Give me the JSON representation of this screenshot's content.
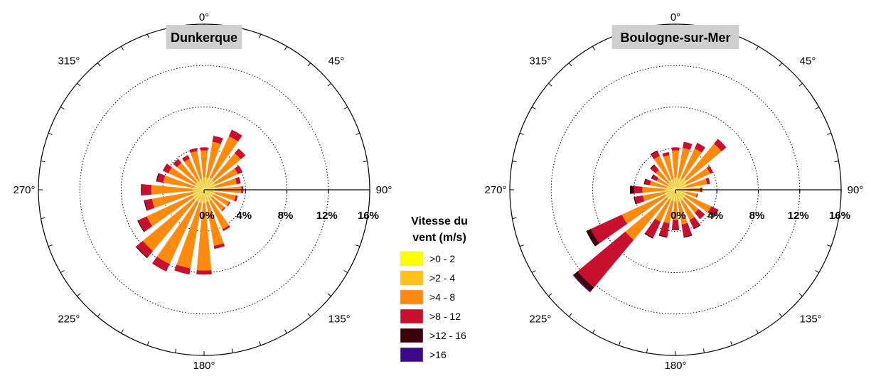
{
  "chart_data": {
    "type": "wind-rose",
    "direction_labels": [
      {
        "angle": 0,
        "text": "0°"
      },
      {
        "angle": 45,
        "text": "45°"
      },
      {
        "angle": 90,
        "text": "90°"
      },
      {
        "angle": 135,
        "text": "135°"
      },
      {
        "angle": 180,
        "text": "180°"
      },
      {
        "angle": 225,
        "text": "225°"
      },
      {
        "angle": 270,
        "text": "270°"
      },
      {
        "angle": 315,
        "text": "315°"
      }
    ],
    "radial_max": 16,
    "radial_ticks": [
      {
        "value": 0,
        "label": "0%"
      },
      {
        "value": 4,
        "label": "4%"
      },
      {
        "value": 8,
        "label": "8%"
      },
      {
        "value": 12,
        "label": "12%"
      },
      {
        "value": 16,
        "label": "16%"
      }
    ],
    "legend": {
      "title_line1": "Vitesse du",
      "title_line2": "vent (m/s)",
      "placement": "center-bottom",
      "classes": [
        {
          "label": ">0 - 2",
          "color": "#ffff00"
        },
        {
          "label": ">2 - 4",
          "color": "#ffc21a"
        },
        {
          "label": ">4 - 8",
          "color": "#ff8a0d"
        },
        {
          "label": ">8 - 12",
          "color": "#c8102e"
        },
        {
          "label": ">12 - 16",
          "color": "#3d0008"
        },
        {
          "label": ">16",
          "color": "#3b0a8a"
        }
      ]
    },
    "stations": [
      {
        "title": "Dunkerque",
        "sectors": [
          {
            "dir": 0,
            "values": [
              0.2,
              1.0,
              2.6,
              0.3,
              0,
              0
            ]
          },
          {
            "dir": 15,
            "values": [
              0.2,
              1.0,
              3.5,
              0.6,
              0,
              0
            ]
          },
          {
            "dir": 30,
            "values": [
              0.2,
              1.1,
              4.4,
              0.7,
              0,
              0
            ]
          },
          {
            "dir": 45,
            "values": [
              0.2,
              1.0,
              3.4,
              0.6,
              0,
              0
            ]
          },
          {
            "dir": 60,
            "values": [
              0.2,
              1.0,
              2.4,
              0.5,
              0,
              0
            ]
          },
          {
            "dir": 75,
            "values": [
              0.2,
              0.9,
              2.1,
              0.4,
              0,
              0
            ]
          },
          {
            "dir": 90,
            "values": [
              0.2,
              0.8,
              2.6,
              0.2,
              0,
              0
            ]
          },
          {
            "dir": 105,
            "values": [
              0.2,
              0.9,
              2.0,
              0.2,
              0,
              0
            ]
          },
          {
            "dir": 120,
            "values": [
              0.2,
              0.8,
              1.7,
              0.1,
              0,
              0
            ]
          },
          {
            "dir": 135,
            "values": [
              0.2,
              0.8,
              1.6,
              0.1,
              0,
              0
            ]
          },
          {
            "dir": 150,
            "values": [
              0.2,
              1.0,
              3.0,
              0.2,
              0,
              0
            ]
          },
          {
            "dir": 165,
            "values": [
              0.2,
              1.0,
              4.3,
              0.3,
              0,
              0
            ]
          },
          {
            "dir": 180,
            "values": [
              0.2,
              1.1,
              6.5,
              0.4,
              0,
              0
            ]
          },
          {
            "dir": 195,
            "values": [
              0.2,
              1.1,
              6.4,
              0.6,
              0,
              0
            ]
          },
          {
            "dir": 210,
            "values": [
              0.2,
              1.1,
              6.6,
              0.8,
              0,
              0
            ]
          },
          {
            "dir": 225,
            "values": [
              0.2,
              1.1,
              6.4,
              0.8,
              0.1,
              0
            ]
          },
          {
            "dir": 240,
            "values": [
              0.2,
              1.0,
              4.9,
              0.9,
              0.1,
              0
            ]
          },
          {
            "dir": 255,
            "values": [
              0.2,
              0.9,
              4.0,
              0.7,
              0.1,
              0
            ]
          },
          {
            "dir": 270,
            "values": [
              0.2,
              0.9,
              4.0,
              0.9,
              0.1,
              0
            ]
          },
          {
            "dir": 285,
            "values": [
              0.2,
              0.8,
              3.0,
              0.6,
              0.1,
              0
            ]
          },
          {
            "dir": 300,
            "values": [
              0.2,
              0.8,
              2.8,
              0.6,
              0,
              0
            ]
          },
          {
            "dir": 315,
            "values": [
              0.2,
              0.8,
              2.4,
              0.5,
              0,
              0
            ]
          },
          {
            "dir": 330,
            "values": [
              0.2,
              0.8,
              2.3,
              0.4,
              0,
              0
            ]
          },
          {
            "dir": 345,
            "values": [
              0.2,
              0.9,
              2.7,
              0.3,
              0,
              0
            ]
          }
        ]
      },
      {
        "title": "Boulogne-sur-Mer",
        "sectors": [
          {
            "dir": 0,
            "values": [
              0.2,
              1.0,
              2.6,
              0.3,
              0,
              0
            ]
          },
          {
            "dir": 15,
            "values": [
              0.2,
              1.0,
              2.9,
              0.6,
              0,
              0
            ]
          },
          {
            "dir": 30,
            "values": [
              0.2,
              1.0,
              3.2,
              0.6,
              0,
              0
            ]
          },
          {
            "dir": 45,
            "values": [
              0.2,
              1.2,
              4.4,
              0.6,
              0,
              0
            ]
          },
          {
            "dir": 60,
            "values": [
              0.2,
              1.0,
              2.5,
              0.3,
              0,
              0
            ]
          },
          {
            "dir": 75,
            "values": [
              0.2,
              0.9,
              2.0,
              0.3,
              0,
              0
            ]
          },
          {
            "dir": 90,
            "values": [
              0.2,
              0.8,
              1.4,
              0.2,
              0,
              0
            ]
          },
          {
            "dir": 105,
            "values": [
              0.2,
              0.8,
              1.1,
              0.1,
              0,
              0
            ]
          },
          {
            "dir": 120,
            "values": [
              0.2,
              0.9,
              2.7,
              0.8,
              0,
              0
            ]
          },
          {
            "dir": 135,
            "values": [
              0.2,
              0.9,
              1.8,
              0.8,
              0,
              0
            ]
          },
          {
            "dir": 150,
            "values": [
              0.2,
              1.0,
              2.0,
              0.9,
              0.1,
              0
            ]
          },
          {
            "dir": 165,
            "values": [
              0.2,
              1.0,
              2.2,
              1.2,
              0.1,
              0
            ]
          },
          {
            "dir": 180,
            "values": [
              0.2,
              0.9,
              1.8,
              0.9,
              0.1,
              0
            ]
          },
          {
            "dir": 195,
            "values": [
              0.2,
              0.9,
              2.2,
              1.3,
              0.1,
              0
            ]
          },
          {
            "dir": 210,
            "values": [
              0.2,
              0.9,
              2.3,
              1.7,
              0.1,
              0
            ]
          },
          {
            "dir": 225,
            "values": [
              0.2,
              0.9,
              5.2,
              6.0,
              0.5,
              0.1
            ]
          },
          {
            "dir": 240,
            "values": [
              0.2,
              0.9,
              4.6,
              3.3,
              0.5,
              0
            ]
          },
          {
            "dir": 255,
            "values": [
              0.2,
              0.8,
              2.2,
              0.8,
              0.1,
              0
            ]
          },
          {
            "dir": 270,
            "values": [
              0.2,
              0.8,
              2.2,
              0.8,
              0.4,
              0
            ]
          },
          {
            "dir": 285,
            "values": [
              0.2,
              0.7,
              1.6,
              0.5,
              0.1,
              0
            ]
          },
          {
            "dir": 300,
            "values": [
              0.2,
              0.6,
              1.2,
              0.5,
              0.1,
              0
            ]
          },
          {
            "dir": 315,
            "values": [
              0.2,
              0.7,
              1.6,
              0.6,
              0.1,
              0
            ]
          },
          {
            "dir": 330,
            "values": [
              0.2,
              0.8,
              2.6,
              0.5,
              0.1,
              0
            ]
          },
          {
            "dir": 345,
            "values": [
              0.2,
              0.8,
              2.4,
              0.3,
              0,
              0
            ]
          }
        ]
      }
    ]
  }
}
